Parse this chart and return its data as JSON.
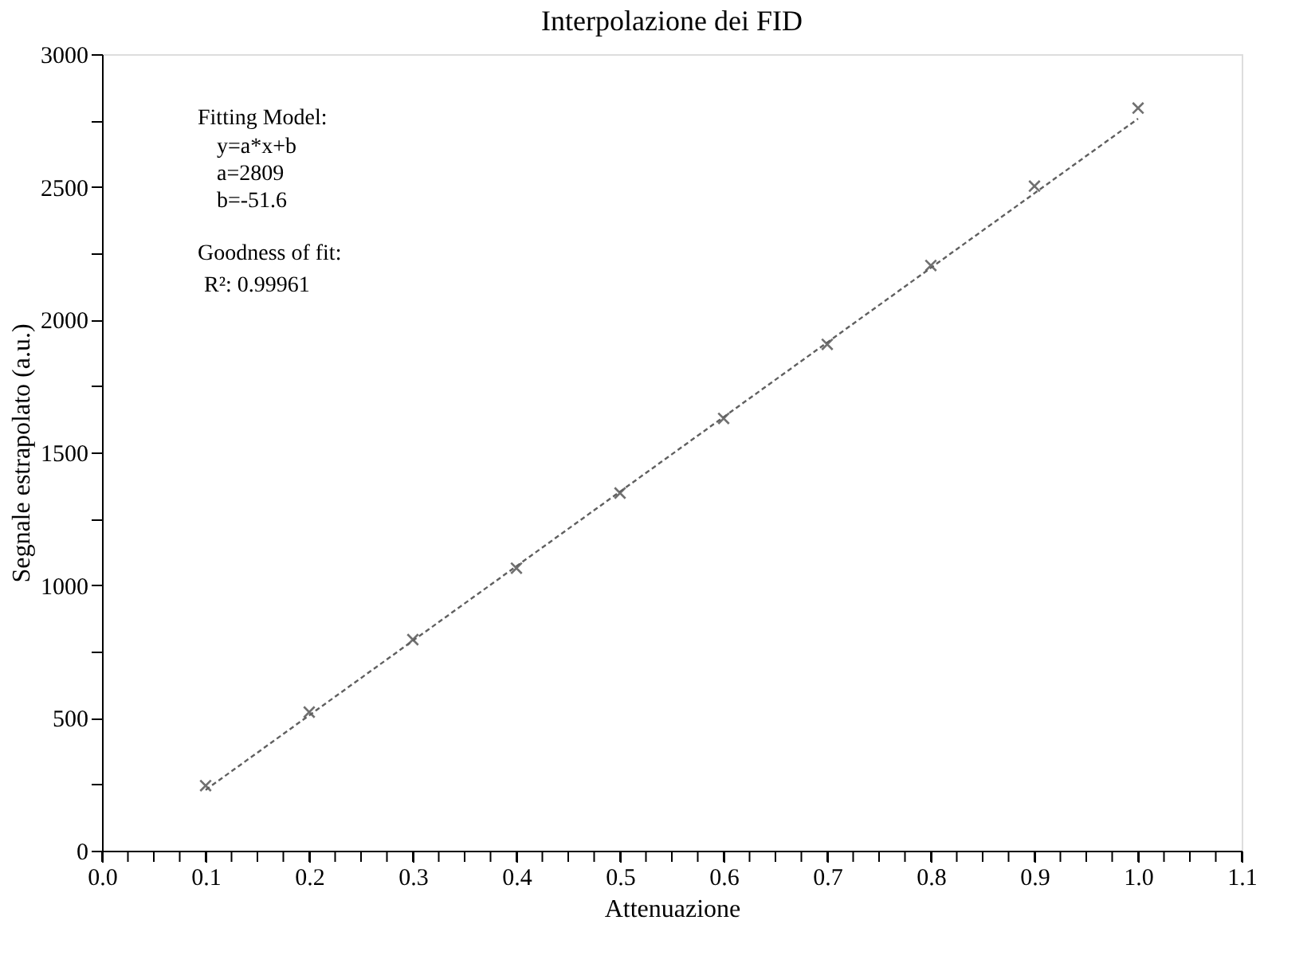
{
  "chart_data": {
    "type": "scatter",
    "title": "Interpolazione dei FID",
    "xlabel": "Attenuazione",
    "ylabel": "Segnale estrapolato (a.u.)",
    "xlim": [
      0,
      1.1
    ],
    "ylim": [
      0,
      3000
    ],
    "xticks": [
      {
        "value": 0,
        "label": "0.0"
      },
      {
        "value": 0.025,
        "label": null
      },
      {
        "value": 0.05,
        "label": null
      },
      {
        "value": 0.075,
        "label": null
      },
      0.1,
      {
        "value": 0.125,
        "label": null
      },
      {
        "value": 0.15,
        "label": null
      },
      {
        "value": 0.175,
        "label": null
      },
      0.2,
      {
        "value": 0.225,
        "label": null
      },
      {
        "value": 0.25,
        "label": null
      },
      {
        "value": 0.275,
        "label": null
      },
      0.3,
      {
        "value": 0.325,
        "label": null
      },
      {
        "value": 0.35,
        "label": null
      },
      {
        "value": 0.375,
        "label": null
      },
      0.4,
      {
        "value": 0.425,
        "label": null
      },
      {
        "value": 0.45,
        "label": null
      },
      {
        "value": 0.475,
        "label": null
      },
      0.5,
      {
        "value": 0.525,
        "label": null
      },
      {
        "value": 0.55,
        "label": null
      },
      {
        "value": 0.575,
        "label": null
      },
      0.6,
      {
        "value": 0.625,
        "label": null
      },
      {
        "value": 0.65,
        "label": null
      },
      {
        "value": 0.675,
        "label": null
      },
      0.7,
      {
        "value": 0.725,
        "label": null
      },
      {
        "value": 0.75,
        "label": null
      },
      {
        "value": 0.775,
        "label": null
      },
      0.8,
      {
        "value": 0.825,
        "label": null
      },
      {
        "value": 0.85,
        "label": null
      },
      {
        "value": 0.875,
        "label": null
      },
      0.9,
      {
        "value": 0.925,
        "label": null
      },
      {
        "value": 0.95,
        "label": null
      },
      {
        "value": 0.975,
        "label": null
      },
      {
        "value": 1,
        "label": "1.0"
      },
      {
        "value": 1.025,
        "label": null
      },
      {
        "value": 1.05,
        "label": null
      },
      {
        "value": 1.075,
        "label": null
      },
      1.1
    ],
    "yticks": [
      0,
      {
        "value": 250,
        "label": null
      },
      500,
      {
        "value": 750,
        "label": null
      },
      1000,
      {
        "value": 1250,
        "label": null
      },
      1500,
      {
        "value": 1750,
        "label": null
      },
      2000,
      {
        "value": 2250,
        "label": null
      },
      2500,
      {
        "value": 2750,
        "label": null
      },
      3000
    ],
    "grid": false,
    "series": [
      {
        "type": "scatter",
        "marker": "cross",
        "color": "#707070",
        "x": [
          0.1,
          0.2,
          0.3,
          0.4,
          0.5,
          0.6,
          0.7,
          0.8,
          0.9,
          1.0
        ],
        "values": [
          245,
          522,
          795,
          1064,
          1347,
          1628,
          1907,
          2204,
          2503,
          2797
        ]
      },
      {
        "type": "line",
        "line_style": "dashed",
        "color": "#606060",
        "x": [
          0.1,
          1.0
        ],
        "values": [
          229,
          2757
        ]
      }
    ],
    "annotations": [
      "Fitting Model:",
      "y=a*x+b",
      "a=2809",
      "b=-51.6",
      "Goodness of fit:",
      "R²: 0.99961"
    ]
  }
}
